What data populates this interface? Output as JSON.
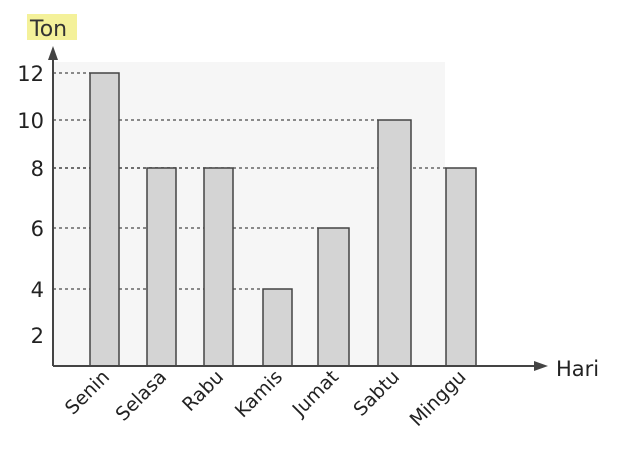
{
  "chart_data": {
    "type": "bar",
    "ylabel": "Ton",
    "xlabel": "Hari",
    "categories": [
      "Senin",
      "Selasa",
      "Rabu",
      "Kamis",
      "Jumat",
      "Sabtu",
      "Minggu"
    ],
    "values": [
      12,
      8,
      8,
      4,
      6,
      10,
      8
    ],
    "yticks": [
      2,
      4,
      6,
      8,
      10,
      12
    ],
    "ylim": [
      0,
      12
    ],
    "grid": "dotted guide lines from each tick to its bar",
    "colors": {
      "bar": "#d4d4d4",
      "bar_edge": "#444444",
      "ylabel_highlight": "#f4f19a"
    }
  }
}
